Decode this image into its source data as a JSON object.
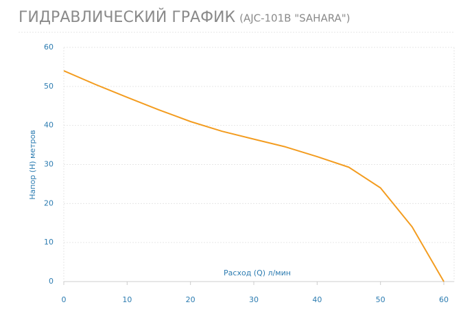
{
  "chart_data": {
    "type": "line",
    "title": "ГИДРАВЛИЧЕСКИЙ ГРАФИК",
    "subtitle": "(AJC-101B \"SAHARA\")",
    "x_label": "Расход (Q) л/мин",
    "y_label": "Напор (H) метров",
    "series": [
      {
        "name": "AJC-101B",
        "color": "#f39c1f",
        "x": [
          0,
          5,
          10,
          15,
          20,
          25,
          30,
          35,
          40,
          45,
          50,
          55,
          60
        ],
        "values": [
          54,
          50.5,
          47.2,
          44,
          41,
          38.5,
          36.5,
          34.5,
          32,
          29.3,
          24,
          14,
          0
        ]
      }
    ],
    "xlim": [
      0,
      60
    ],
    "xticks": [
      0,
      10,
      20,
      30,
      40,
      50,
      60
    ],
    "ylim": [
      0,
      60
    ],
    "yticks": [
      0,
      10,
      20,
      30,
      40,
      50,
      60
    ],
    "grid": true
  }
}
